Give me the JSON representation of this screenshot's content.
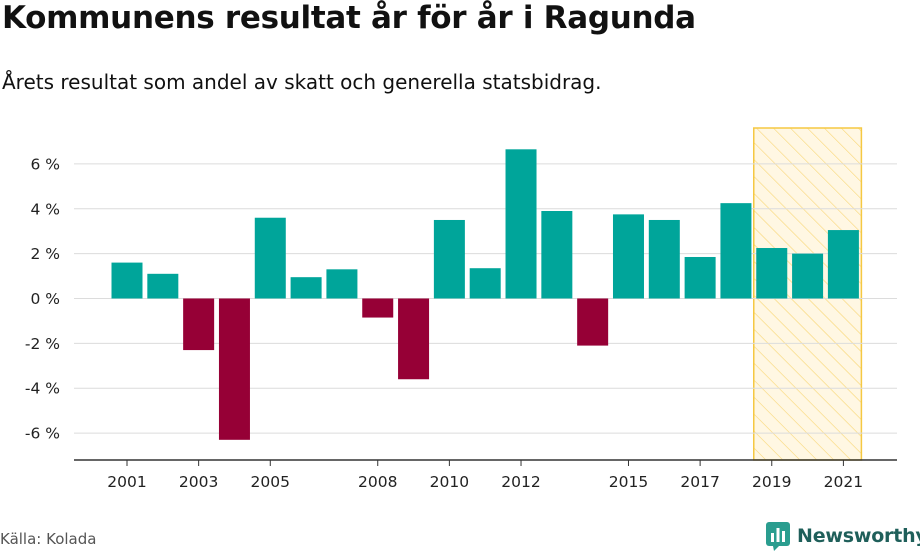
{
  "title": "Kommunens resultat år för år i Ragunda",
  "subtitle": "Årets resultat som andel av skatt och generella statsbidrag.",
  "source": "Källa: Kolada",
  "brand": {
    "name": "Newsworthy",
    "icon": "newsworthy-logo-icon",
    "color": "#2a9d8f"
  },
  "colors": {
    "positive": "#00a59a",
    "negative": "#960036",
    "highlight_fill": "#fff1cc",
    "highlight_stroke": "#f5c842",
    "grid": "#dcdcdc",
    "axis": "#333333"
  },
  "chart_data": {
    "type": "bar",
    "categories": [
      "2001",
      "2002",
      "2003",
      "2004",
      "2005",
      "2006",
      "2007",
      "2008",
      "2009",
      "2010",
      "2011",
      "2012",
      "2013",
      "2014",
      "2015",
      "2016",
      "2017",
      "2018",
      "2019",
      "2020",
      "2021"
    ],
    "values": [
      1.6,
      1.1,
      -2.3,
      -6.3,
      3.6,
      0.95,
      1.3,
      -0.85,
      -3.6,
      3.5,
      1.35,
      6.65,
      3.9,
      -2.1,
      3.75,
      3.5,
      1.85,
      4.25,
      2.25,
      2.0,
      3.05
    ],
    "x_tick_labels": [
      "2001",
      "2003",
      "2005",
      "2008",
      "2010",
      "2012",
      "2015",
      "2017",
      "2019",
      "2021"
    ],
    "y_ticks": [
      -6,
      -4,
      -2,
      0,
      2,
      4,
      6
    ],
    "y_tick_labels": [
      "-6 %",
      "-4 %",
      "-2 %",
      "0 %",
      "2 %",
      "4 %",
      "6 %"
    ],
    "ylim": [
      -7.2,
      7.6
    ],
    "xlabel": "",
    "ylabel": "",
    "grid": true,
    "highlight_range": [
      "2019",
      "2021"
    ]
  }
}
